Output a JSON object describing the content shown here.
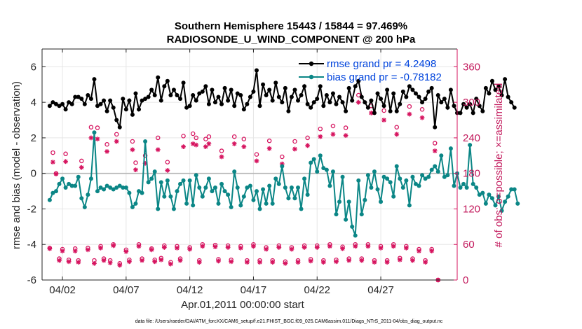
{
  "chart_data": {
    "type": "line",
    "title": "Southern Hemisphere 15443 / 15844 = 97.469%",
    "subtitle": "RADIOSONDE_U_WIND_COMPONENT @ 200 hPa",
    "xlabel": "Apr.01,2011 00:00:00 start",
    "ylabel": "rmse and bias (model - observation)",
    "ylabel_right": "# of obs: o=possible; ×=assimilated",
    "footnote": "data file: /Users/raeder/DAI/ATM_forcXX/CAM6_setup/f.e21.FHIST_BGC.f09_025.CAM6assim.011/Diags_NTrS_2011-04/obs_diag_output.nc",
    "xlim": [
      0.4,
      33.0
    ],
    "ylim": [
      -6,
      7
    ],
    "ylim_right": [
      0,
      390
    ],
    "grid": true,
    "x_ticks": [
      {
        "value": 2,
        "label": "04/02"
      },
      {
        "value": 7,
        "label": "04/07"
      },
      {
        "value": 12,
        "label": "04/12"
      },
      {
        "value": 17,
        "label": "04/17"
      },
      {
        "value": 22,
        "label": "04/22"
      },
      {
        "value": 27,
        "label": "04/27"
      }
    ],
    "y_ticks": [
      "-6",
      "-4",
      "-2",
      "0",
      "2",
      "4",
      "6"
    ],
    "y_ticks_right": [
      "0",
      "60",
      "120",
      "180",
      "240",
      "300",
      "360"
    ],
    "legend": {
      "rmse": "rmse grand pr = 4.2498",
      "bias": "bias grand pr = -0.78182",
      "placement": "top-right"
    },
    "colors": {
      "rmse": "#000000",
      "bias": "#0b8686",
      "obs": "#d6145f",
      "zero_line": "#b5b5b5",
      "grid": "#e6e6e6"
    },
    "x_start": 1.0,
    "x_step": 0.25,
    "series": [
      {
        "name": "rmse",
        "values": [
          3.8,
          4.0,
          3.9,
          3.8,
          3.9,
          3.6,
          4.0,
          3.9,
          4.3,
          4.3,
          4.2,
          3.9,
          4.4,
          4.2,
          5.3,
          3.8,
          3.9,
          4.1,
          3.5,
          4.1,
          3.7,
          3.0,
          2.6,
          4.2,
          3.6,
          4.1,
          3.3,
          4.5,
          3.6,
          4.1,
          4.2,
          4.3,
          4.7,
          4.4,
          5.4,
          4.1,
          4.9,
          5.2,
          4.4,
          4.7,
          4.4,
          4.2,
          5.1,
          3.7,
          3.8,
          4.4,
          4.1,
          4.5,
          4.6,
          4.9,
          3.9,
          4.7,
          4.0,
          4.3,
          3.9,
          4.8,
          4.1,
          4.7,
          3.8,
          4.5,
          4.4,
          3.6,
          3.9,
          4.3,
          4.6,
          5.8,
          3.8,
          5.0,
          4.4,
          4.7,
          4.1,
          5.1,
          4.3,
          4.0,
          4.8,
          3.5,
          4.3,
          4.7,
          4.1,
          4.4,
          4.9,
          3.9,
          3.7,
          4.0,
          4.2,
          4.9,
          3.8,
          4.4,
          4.0,
          4.5,
          3.9,
          4.3,
          4.0,
          3.5,
          4.8,
          4.1,
          4.9,
          5.2,
          4.3,
          4.0,
          3.7,
          4.1,
          3.4,
          4.5,
          4.2,
          3.8,
          4.7,
          3.5,
          4.5,
          3.5,
          3.9,
          4.6,
          4.3,
          4.9,
          4.7,
          4.5,
          4.3,
          4.0,
          4.2,
          4.6,
          4.8,
          2.6,
          4.4,
          4.0,
          4.2,
          3.7,
          4.7,
          3.8,
          3.4,
          3.4,
          3.9,
          3.7,
          3.9,
          3.4,
          4.2,
          3.8,
          3.5,
          4.8,
          4.5,
          5.2,
          4.7,
          4.9,
          4.4,
          5.3,
          4.3,
          4.0,
          3.7
        ]
      },
      {
        "name": "bias",
        "values": [
          -1.5,
          -1.1,
          -1.0,
          -0.6,
          -0.3,
          -0.8,
          -0.6,
          -0.7,
          -0.7,
          -0.2,
          -1.4,
          -1.9,
          -1.2,
          -0.3,
          2.3,
          -1.0,
          -0.8,
          -0.9,
          -0.7,
          -0.8,
          -0.9,
          -0.8,
          -0.7,
          -0.8,
          -0.8,
          -1.1,
          -1.9,
          -1.7,
          -1.0,
          -1.1,
          1.8,
          -0.5,
          -0.3,
          0.1,
          -2.0,
          -0.5,
          -1.3,
          -0.4,
          -1.3,
          -2.0,
          -1.0,
          -0.6,
          -0.4,
          -1.7,
          -0.4,
          -1.8,
          -0.1,
          -0.8,
          -1.3,
          -0.8,
          -0.3,
          -1.0,
          -0.8,
          -1.7,
          -0.6,
          -1.0,
          -1.2,
          -1.9,
          0.1,
          -0.8,
          -1.8,
          -1.3,
          -0.8,
          -0.7,
          -1.5,
          -1.0,
          -2.0,
          -0.9,
          -1.7,
          -0.7,
          -1.7,
          -0.3,
          -0.6,
          0.4,
          -0.8,
          -1.4,
          -0.8,
          -1.4,
          -0.8,
          -2.0,
          -0.3,
          -1.2,
          0.6,
          0.8,
          0.1,
          1.0,
          0.3,
          0.2,
          -0.7,
          0.1,
          -2.3,
          -1.6,
          -0.2,
          -2.6,
          -1.6,
          -3.0,
          -3.5,
          -0.4,
          -2.3,
          -1.5,
          -0.1,
          -0.8,
          0.1,
          -0.9,
          -1.6,
          -0.2,
          -0.3,
          -0.5,
          -1.3,
          0.4,
          -0.3,
          -0.8,
          -0.4,
          -1.8,
          -0.2,
          -0.6,
          -0.7,
          -0.1,
          -0.3,
          -0.2,
          0.2,
          0.4,
          0.1,
          1.0,
          -0.2,
          -0.1,
          1.4,
          -0.7,
          0.0,
          -0.8,
          -0.6,
          -0.8,
          1.6,
          -0.6,
          -0.8,
          -1.2,
          -1.1,
          -1.7,
          -1.2,
          -1.4,
          -1.8,
          -1.3,
          -2.1,
          -1.6,
          -1.3,
          -0.9,
          -0.9,
          -1.7
        ]
      }
    ],
    "obs_possible": [
      {
        "x": 1.0,
        "v": 54
      },
      {
        "x": 1.25,
        "v": 215
      },
      {
        "x": 1.5,
        "v": 180
      },
      {
        "x": 1.75,
        "v": 36
      },
      {
        "x": 2.0,
        "v": 52
      },
      {
        "x": 2.25,
        "v": 213
      },
      {
        "x": 2.5,
        "v": 34
      },
      {
        "x": 3.0,
        "v": 53
      },
      {
        "x": 3.25,
        "v": 33
      },
      {
        "x": 3.5,
        "v": 201
      },
      {
        "x": 4.0,
        "v": 54
      },
      {
        "x": 4.25,
        "v": 258
      },
      {
        "x": 4.5,
        "v": 33
      },
      {
        "x": 4.75,
        "v": 257
      },
      {
        "x": 5.0,
        "v": 57
      },
      {
        "x": 5.25,
        "v": 36
      },
      {
        "x": 5.5,
        "v": 229
      },
      {
        "x": 5.75,
        "v": 33
      },
      {
        "x": 6.0,
        "v": 60
      },
      {
        "x": 6.25,
        "v": 246
      },
      {
        "x": 6.5,
        "v": 28
      },
      {
        "x": 7.0,
        "v": 51
      },
      {
        "x": 7.25,
        "v": 34
      },
      {
        "x": 7.5,
        "v": 234
      },
      {
        "x": 7.75,
        "v": 198
      },
      {
        "x": 8.0,
        "v": 60
      },
      {
        "x": 8.25,
        "v": 36
      },
      {
        "x": 8.5,
        "v": 210
      },
      {
        "x": 9.0,
        "v": 53
      },
      {
        "x": 9.25,
        "v": 34
      },
      {
        "x": 9.5,
        "v": 240
      },
      {
        "x": 9.75,
        "v": 37
      },
      {
        "x": 10.0,
        "v": 58
      },
      {
        "x": 10.25,
        "v": 199
      },
      {
        "x": 10.5,
        "v": 30
      },
      {
        "x": 11.0,
        "v": 57
      },
      {
        "x": 11.25,
        "v": 36
      },
      {
        "x": 11.5,
        "v": 243
      },
      {
        "x": 12.0,
        "v": 55
      },
      {
        "x": 12.25,
        "v": 247
      },
      {
        "x": 12.5,
        "v": 240
      },
      {
        "x": 12.75,
        "v": 33
      },
      {
        "x": 13.0,
        "v": 60
      },
      {
        "x": 13.25,
        "v": 238
      },
      {
        "x": 13.5,
        "v": 242
      },
      {
        "x": 14.0,
        "v": 59
      },
      {
        "x": 14.25,
        "v": 35
      },
      {
        "x": 14.5,
        "v": 218
      },
      {
        "x": 15.0,
        "v": 58
      },
      {
        "x": 15.25,
        "v": 34
      },
      {
        "x": 15.5,
        "v": 242
      },
      {
        "x": 16.0,
        "v": 57
      },
      {
        "x": 16.25,
        "v": 238
      },
      {
        "x": 16.5,
        "v": 33
      },
      {
        "x": 17.0,
        "v": 60
      },
      {
        "x": 17.25,
        "v": 212
      },
      {
        "x": 17.5,
        "v": 33
      },
      {
        "x": 18.0,
        "v": 55
      },
      {
        "x": 18.25,
        "v": 235
      },
      {
        "x": 18.5,
        "v": 33
      },
      {
        "x": 19.0,
        "v": 58
      },
      {
        "x": 19.25,
        "v": 208
      },
      {
        "x": 19.5,
        "v": 31
      },
      {
        "x": 20.0,
        "v": 55
      },
      {
        "x": 20.25,
        "v": 234
      },
      {
        "x": 20.5,
        "v": 33
      },
      {
        "x": 21.0,
        "v": 58
      },
      {
        "x": 21.25,
        "v": 240
      },
      {
        "x": 21.5,
        "v": 35
      },
      {
        "x": 22.0,
        "v": 58
      },
      {
        "x": 22.25,
        "v": 255
      },
      {
        "x": 22.5,
        "v": 33
      },
      {
        "x": 23.0,
        "v": 60
      },
      {
        "x": 23.25,
        "v": 260
      },
      {
        "x": 23.5,
        "v": 34
      },
      {
        "x": 24.0,
        "v": 56
      },
      {
        "x": 24.25,
        "v": 257
      },
      {
        "x": 24.5,
        "v": 36
      },
      {
        "x": 25.0,
        "v": 60
      },
      {
        "x": 25.25,
        "v": 312
      },
      {
        "x": 25.5,
        "v": 36
      },
      {
        "x": 26.0,
        "v": 60
      },
      {
        "x": 26.25,
        "v": 294
      },
      {
        "x": 26.5,
        "v": 33
      },
      {
        "x": 27.0,
        "v": 57
      },
      {
        "x": 27.25,
        "v": 286
      },
      {
        "x": 27.5,
        "v": 33
      },
      {
        "x": 28.0,
        "v": 60
      },
      {
        "x": 28.25,
        "v": 258
      },
      {
        "x": 28.5,
        "v": 37
      },
      {
        "x": 29.0,
        "v": 57
      },
      {
        "x": 29.25,
        "v": 293
      },
      {
        "x": 29.5,
        "v": 36
      },
      {
        "x": 30.0,
        "v": 52
      },
      {
        "x": 30.25,
        "v": 288
      },
      {
        "x": 30.5,
        "v": 33
      },
      {
        "x": 31.0,
        "v": 52
      },
      {
        "x": 31.25,
        "v": 231
      },
      {
        "x": 31.5,
        "v": 0
      }
    ],
    "obs_assimilated": [
      {
        "x": 1.0,
        "v": 53
      },
      {
        "x": 1.25,
        "v": 199
      },
      {
        "x": 1.5,
        "v": 179
      },
      {
        "x": 1.75,
        "v": 33
      },
      {
        "x": 2.0,
        "v": 49
      },
      {
        "x": 2.25,
        "v": 200
      },
      {
        "x": 2.5,
        "v": 31
      },
      {
        "x": 3.0,
        "v": 49
      },
      {
        "x": 3.25,
        "v": 30
      },
      {
        "x": 3.5,
        "v": 190
      },
      {
        "x": 4.0,
        "v": 51
      },
      {
        "x": 4.25,
        "v": 240
      },
      {
        "x": 4.5,
        "v": 28
      },
      {
        "x": 4.75,
        "v": 238
      },
      {
        "x": 5.0,
        "v": 54
      },
      {
        "x": 5.25,
        "v": 33
      },
      {
        "x": 5.5,
        "v": 217
      },
      {
        "x": 5.75,
        "v": 29
      },
      {
        "x": 6.0,
        "v": 58
      },
      {
        "x": 6.25,
        "v": 234
      },
      {
        "x": 6.5,
        "v": 25
      },
      {
        "x": 7.0,
        "v": 48
      },
      {
        "x": 7.25,
        "v": 31
      },
      {
        "x": 7.5,
        "v": 220
      },
      {
        "x": 7.75,
        "v": 186
      },
      {
        "x": 8.0,
        "v": 57
      },
      {
        "x": 8.25,
        "v": 33
      },
      {
        "x": 8.5,
        "v": 197
      },
      {
        "x": 9.0,
        "v": 51
      },
      {
        "x": 9.25,
        "v": 31
      },
      {
        "x": 9.5,
        "v": 220
      },
      {
        "x": 9.75,
        "v": 34
      },
      {
        "x": 10.0,
        "v": 55
      },
      {
        "x": 10.25,
        "v": 185
      },
      {
        "x": 10.5,
        "v": 27
      },
      {
        "x": 11.0,
        "v": 54
      },
      {
        "x": 11.25,
        "v": 33
      },
      {
        "x": 11.5,
        "v": 225
      },
      {
        "x": 12.0,
        "v": 52
      },
      {
        "x": 12.25,
        "v": 230
      },
      {
        "x": 12.5,
        "v": 228
      },
      {
        "x": 12.75,
        "v": 30
      },
      {
        "x": 13.0,
        "v": 57
      },
      {
        "x": 13.25,
        "v": 225
      },
      {
        "x": 13.5,
        "v": 230
      },
      {
        "x": 14.0,
        "v": 56
      },
      {
        "x": 14.25,
        "v": 32
      },
      {
        "x": 14.5,
        "v": 208
      },
      {
        "x": 15.0,
        "v": 55
      },
      {
        "x": 15.25,
        "v": 31
      },
      {
        "x": 15.5,
        "v": 230
      },
      {
        "x": 16.0,
        "v": 54
      },
      {
        "x": 16.25,
        "v": 225
      },
      {
        "x": 16.5,
        "v": 30
      },
      {
        "x": 17.0,
        "v": 57
      },
      {
        "x": 17.25,
        "v": 201
      },
      {
        "x": 17.5,
        "v": 30
      },
      {
        "x": 18.0,
        "v": 52
      },
      {
        "x": 18.25,
        "v": 222
      },
      {
        "x": 18.5,
        "v": 30
      },
      {
        "x": 19.0,
        "v": 55
      },
      {
        "x": 19.25,
        "v": 196
      },
      {
        "x": 19.5,
        "v": 28
      },
      {
        "x": 20.0,
        "v": 52
      },
      {
        "x": 20.25,
        "v": 221
      },
      {
        "x": 20.5,
        "v": 30
      },
      {
        "x": 21.0,
        "v": 55
      },
      {
        "x": 21.25,
        "v": 227
      },
      {
        "x": 21.5,
        "v": 32
      },
      {
        "x": 22.0,
        "v": 55
      },
      {
        "x": 22.25,
        "v": 242
      },
      {
        "x": 22.5,
        "v": 30
      },
      {
        "x": 23.0,
        "v": 57
      },
      {
        "x": 23.25,
        "v": 246
      },
      {
        "x": 23.5,
        "v": 31
      },
      {
        "x": 24.0,
        "v": 53
      },
      {
        "x": 24.25,
        "v": 244
      },
      {
        "x": 24.5,
        "v": 33
      },
      {
        "x": 25.0,
        "v": 57
      },
      {
        "x": 25.25,
        "v": 300
      },
      {
        "x": 25.5,
        "v": 33
      },
      {
        "x": 26.0,
        "v": 57
      },
      {
        "x": 26.25,
        "v": 282
      },
      {
        "x": 26.5,
        "v": 30
      },
      {
        "x": 27.0,
        "v": 54
      },
      {
        "x": 27.25,
        "v": 270
      },
      {
        "x": 27.5,
        "v": 30
      },
      {
        "x": 28.0,
        "v": 57
      },
      {
        "x": 28.25,
        "v": 246
      },
      {
        "x": 28.5,
        "v": 34
      },
      {
        "x": 29.0,
        "v": 54
      },
      {
        "x": 29.25,
        "v": 280
      },
      {
        "x": 29.5,
        "v": 33
      },
      {
        "x": 30.0,
        "v": 49
      },
      {
        "x": 30.25,
        "v": 274
      },
      {
        "x": 30.5,
        "v": 30
      },
      {
        "x": 31.0,
        "v": 49
      },
      {
        "x": 31.25,
        "v": 218
      },
      {
        "x": 31.5,
        "v": 0
      }
    ]
  }
}
